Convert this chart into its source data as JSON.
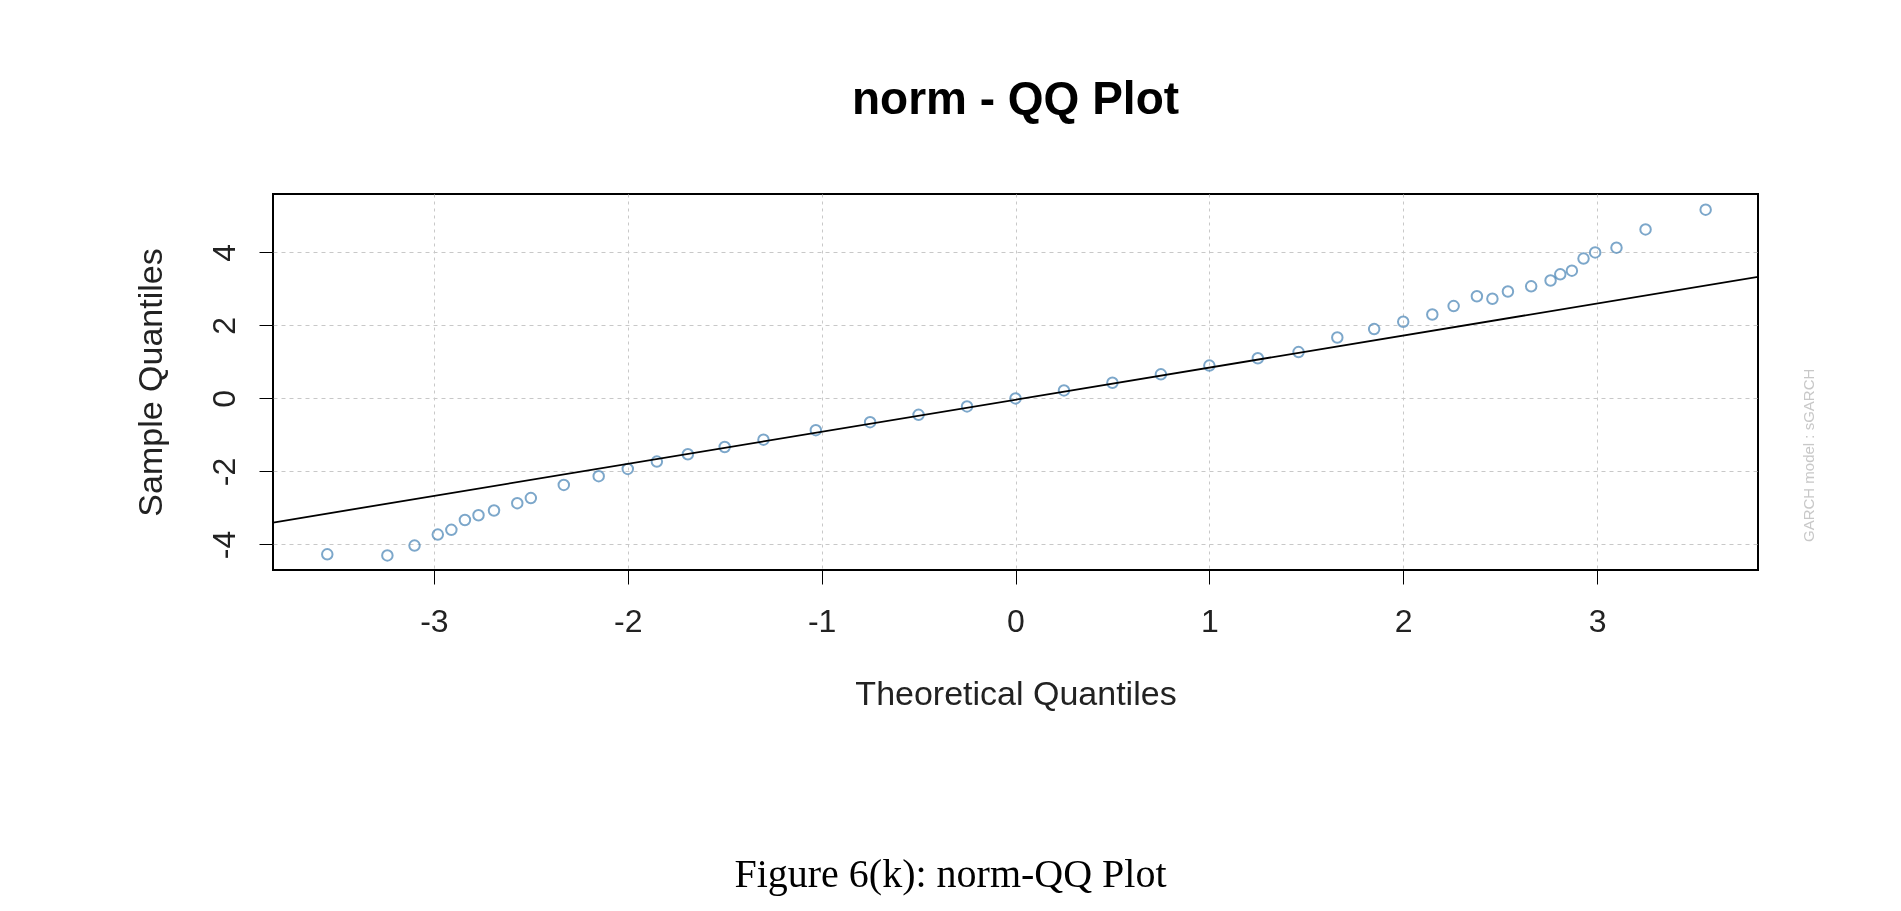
{
  "chart_data": {
    "type": "scatter",
    "title": "norm - QQ Plot",
    "xlabel": "Theoretical Quantiles",
    "ylabel": "Sample Quantiles",
    "xlim": [
      -3.83,
      3.83
    ],
    "ylim": [
      -4.7,
      5.6
    ],
    "xticks": [
      -3,
      -2,
      -1,
      0,
      1,
      2,
      3
    ],
    "yticks": [
      -4,
      -2,
      0,
      2,
      4
    ],
    "grid": true,
    "marker": "circle",
    "series": [
      {
        "color": "#4682b4",
        "x": [
          -3.55,
          -3.24,
          -3.1,
          -2.98,
          -2.91,
          -2.84,
          -2.77,
          -2.69,
          -2.57,
          -2.5,
          -2.33,
          -2.15,
          -2.0,
          -1.85,
          -1.69,
          -1.5,
          -1.3,
          -1.03,
          -0.75,
          -0.5,
          -0.25,
          0,
          0.25,
          0.5,
          0.75,
          1.0,
          1.25,
          1.46,
          1.66,
          1.85,
          2.0,
          2.15,
          2.26,
          2.38,
          2.46,
          2.54,
          2.66,
          2.76,
          2.81,
          2.87,
          2.93,
          2.99,
          3.1,
          3.25,
          3.56
        ],
        "values": [
          -4.27,
          -4.3,
          -4.03,
          -3.73,
          -3.6,
          -3.33,
          -3.2,
          -3.07,
          -2.87,
          -2.73,
          -2.37,
          -2.13,
          -1.93,
          -1.73,
          -1.53,
          -1.33,
          -1.13,
          -0.87,
          -0.65,
          -0.45,
          -0.22,
          0,
          0.22,
          0.43,
          0.66,
          0.9,
          1.1,
          1.27,
          1.67,
          1.9,
          2.1,
          2.3,
          2.53,
          2.8,
          2.73,
          2.93,
          3.07,
          3.23,
          3.4,
          3.5,
          3.83,
          4.0,
          4.13,
          4.63,
          5.17
        ]
      },
      {
        "type": "line",
        "marker": "none",
        "color": "#000000",
        "x": [
          -3.83,
          3.83
        ],
        "values": [
          -3.4,
          3.33
        ]
      }
    ],
    "annotations": [
      "GARCH model : sGARCH",
      "Figure 6(k): norm-QQ Plot"
    ]
  }
}
